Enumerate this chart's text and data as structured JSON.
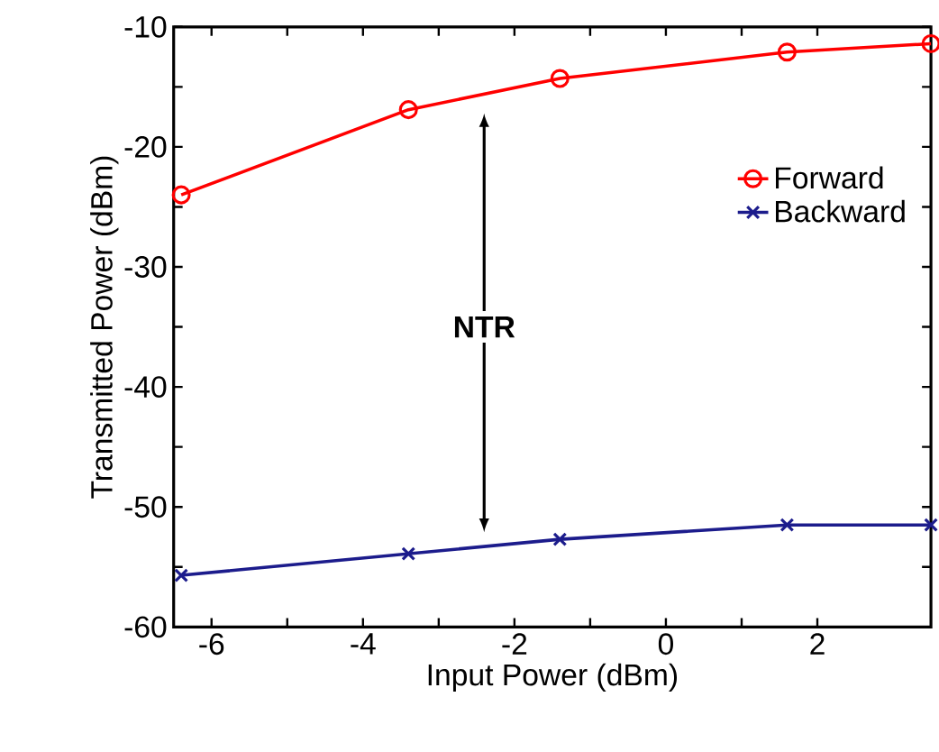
{
  "chart_data": {
    "type": "line",
    "xlabel": "Input Power (dBm)",
    "ylabel": "Transmitted Power (dBm)",
    "x": [
      -6.4,
      -3.4,
      -1.4,
      1.6,
      3.5
    ],
    "series": [
      {
        "name": "Forward",
        "color": "#ff0000",
        "marker": "circle",
        "values": [
          -24.0,
          -16.9,
          -14.3,
          -12.1,
          -11.4
        ]
      },
      {
        "name": "Backward",
        "color": "#1c1c8c",
        "marker": "cross",
        "values": [
          -55.7,
          -53.9,
          -52.7,
          -51.5,
          -51.5
        ]
      }
    ],
    "xlim": [
      -6.5,
      3.5
    ],
    "xticks": [
      -6,
      -4,
      -2,
      0,
      2
    ],
    "ylim": [
      -60,
      -10
    ],
    "yticks": [
      -60,
      -50,
      -40,
      -30,
      -20,
      -10
    ],
    "legend": "right",
    "grid": false,
    "line_style": "solid",
    "annotations": [
      {
        "text": "NTR",
        "x": -2.4,
        "y": -35
      }
    ]
  }
}
